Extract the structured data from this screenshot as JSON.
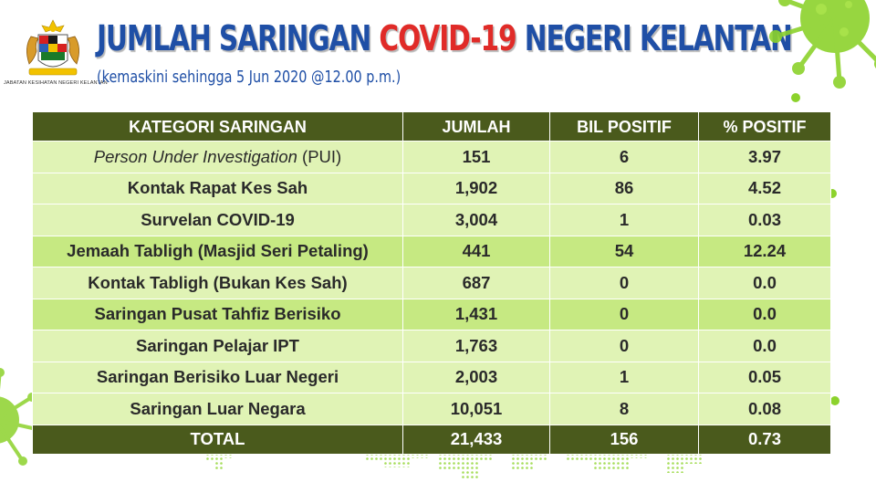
{
  "header": {
    "agency": "JABATAN KESIHATAN NEGERI KELANTAN",
    "title_part1": "JUMLAH SARINGAN ",
    "title_highlight": "COVID-19",
    "title_part2": " NEGERI KELANTAN",
    "subtitle": "(kemaskini sehingga 5 Jun 2020 @12.00 p.m.)"
  },
  "table": {
    "columns": [
      "KATEGORI SARINGAN",
      "JUMLAH",
      "BIL POSITIF",
      "% POSITIF"
    ],
    "rows": [
      {
        "cat_italic": "Person Under Investigation",
        "cat_suffix": " (PUI)",
        "jumlah": "151",
        "positif": "6",
        "pct": "3.97"
      },
      {
        "cat_italic": "",
        "cat_suffix": "Kontak Rapat Kes Sah",
        "jumlah": "1,902",
        "positif": "86",
        "pct": "4.52"
      },
      {
        "cat_italic": "",
        "cat_suffix": "Survelan COVID-19",
        "jumlah": "3,004",
        "positif": "1",
        "pct": "0.03"
      },
      {
        "cat_italic": "",
        "cat_suffix": "Jemaah Tabligh (Masjid Seri Petaling)",
        "jumlah": "441",
        "positif": "54",
        "pct": "12.24"
      },
      {
        "cat_italic": "",
        "cat_suffix": "Kontak Tabligh (Bukan Kes Sah)",
        "jumlah": "687",
        "positif": "0",
        "pct": "0.0"
      },
      {
        "cat_italic": "",
        "cat_suffix": "Saringan Pusat Tahfiz Berisiko",
        "jumlah": "1,431",
        "positif": "0",
        "pct": "0.0"
      },
      {
        "cat_italic": "",
        "cat_suffix": "Saringan Pelajar IPT",
        "jumlah": "1,763",
        "positif": "0",
        "pct": "0.0"
      },
      {
        "cat_italic": "",
        "cat_suffix": "Saringan Berisiko Luar Negeri",
        "jumlah": "2,003",
        "positif": "1",
        "pct": "0.05"
      },
      {
        "cat_italic": "",
        "cat_suffix": "Saringan Luar Negara",
        "jumlah": "10,051",
        "positif": "8",
        "pct": "0.08"
      }
    ],
    "total": {
      "label": "TOTAL",
      "jumlah": "21,433",
      "positif": "156",
      "pct": "0.73"
    }
  },
  "colors": {
    "header_row": "#4a5a1c",
    "row_light": "#e0f3b5",
    "row_mid": "#c6e982",
    "title_blue": "#1f4fa6",
    "title_red": "#e02b28",
    "virus_green": "#8cd22c"
  },
  "icons": {
    "crest": "malaysia-coat-of-arms-icon",
    "virus": "coronavirus-icon"
  }
}
